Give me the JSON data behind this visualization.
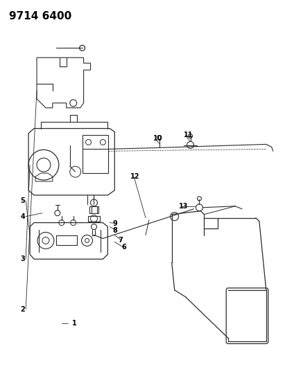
{
  "title": "9714 6400",
  "bg": "#ffffff",
  "lc": "#2a2a2a",
  "fc": "#f0f0f0",
  "label_color": "#000000",
  "label_fontsize": 7,
  "title_fontsize": 11,
  "part_labels": [
    [
      "1",
      103,
      468
    ],
    [
      "2",
      28,
      448
    ],
    [
      "3",
      28,
      375
    ],
    [
      "4",
      28,
      313
    ],
    [
      "5",
      28,
      290
    ],
    [
      "6",
      175,
      358
    ],
    [
      "7",
      170,
      348
    ],
    [
      "8",
      162,
      333
    ],
    [
      "9",
      162,
      323
    ],
    [
      "10",
      221,
      200
    ],
    [
      "11",
      265,
      195
    ],
    [
      "12",
      188,
      255
    ],
    [
      "13",
      258,
      298
    ]
  ]
}
